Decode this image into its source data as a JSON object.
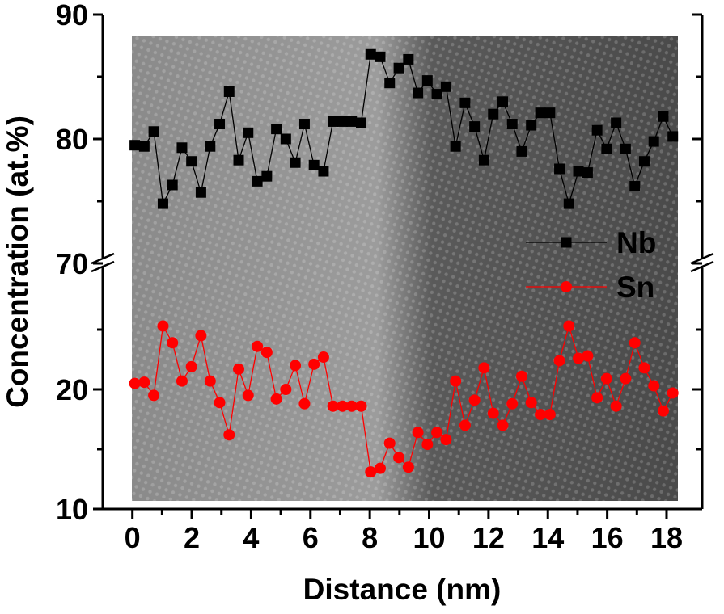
{
  "chart_data": {
    "type": "line",
    "xlabel": "Distance (nm)",
    "ylabel": "Concentration (at.%)",
    "x": [
      0.08,
      0.4,
      0.72,
      1.03,
      1.35,
      1.67,
      1.99,
      2.31,
      2.62,
      2.94,
      3.26,
      3.58,
      3.9,
      4.21,
      4.53,
      4.85,
      5.17,
      5.49,
      5.8,
      6.12,
      6.44,
      6.76,
      7.08,
      7.39,
      7.71,
      8.03,
      8.35,
      8.67,
      8.98,
      9.3,
      9.62,
      9.94,
      10.26,
      10.57,
      10.89,
      11.21,
      11.53,
      11.85,
      12.16,
      12.48,
      12.8,
      13.12,
      13.44,
      13.75,
      14.07,
      14.39,
      14.71,
      15.03,
      15.34,
      15.66,
      15.98,
      16.3,
      16.62,
      16.93,
      17.25,
      17.57,
      17.89,
      18.21
    ],
    "series": [
      {
        "name": "Nb",
        "color": "#000000",
        "marker": "square",
        "values": [
          79.5,
          79.4,
          80.6,
          74.8,
          76.3,
          79.3,
          78.2,
          75.7,
          79.4,
          81.2,
          83.8,
          78.3,
          80.5,
          76.6,
          77.0,
          80.8,
          80.0,
          78.1,
          81.2,
          77.9,
          77.4,
          81.4,
          81.4,
          81.4,
          81.3,
          86.8,
          86.6,
          84.5,
          85.7,
          86.4,
          83.7,
          84.7,
          83.6,
          84.2,
          79.4,
          82.9,
          81.0,
          78.3,
          82.0,
          83.0,
          81.2,
          79.0,
          81.1,
          82.1,
          82.1,
          77.6,
          74.8,
          77.4,
          77.3,
          80.7,
          79.2,
          81.3,
          79.2,
          76.2,
          78.2,
          79.8,
          81.8,
          80.2
        ]
      },
      {
        "name": "Sn",
        "color": "#ff0000",
        "marker": "circle",
        "values": [
          20.5,
          20.6,
          19.5,
          25.3,
          23.9,
          20.7,
          21.9,
          24.5,
          20.7,
          18.9,
          16.2,
          21.7,
          19.5,
          23.6,
          23.1,
          19.2,
          20.0,
          22.0,
          18.8,
          22.1,
          22.7,
          18.6,
          18.6,
          18.6,
          18.6,
          13.1,
          13.4,
          15.5,
          14.3,
          13.5,
          16.4,
          15.4,
          16.4,
          15.8,
          20.7,
          17.0,
          19.1,
          21.8,
          18.0,
          17.0,
          18.8,
          21.1,
          18.9,
          17.9,
          17.9,
          22.4,
          25.3,
          22.6,
          22.8,
          19.3,
          20.9,
          18.6,
          20.9,
          23.9,
          21.8,
          20.3,
          18.2,
          19.7
        ]
      }
    ],
    "xlim": [
      -1,
      19.2
    ],
    "xticks": [
      0,
      2,
      4,
      6,
      8,
      10,
      12,
      14,
      16,
      18
    ],
    "minor_xticks": [
      1,
      3,
      5,
      7,
      9,
      11,
      13,
      15,
      17
    ],
    "ylim_lower": [
      10,
      30
    ],
    "ylim_upper": [
      70,
      90
    ],
    "yticks": [
      10,
      20,
      70,
      80,
      90
    ],
    "minor_yticks": [
      15,
      25,
      75,
      85
    ],
    "axis_break": true,
    "legend": "right"
  }
}
